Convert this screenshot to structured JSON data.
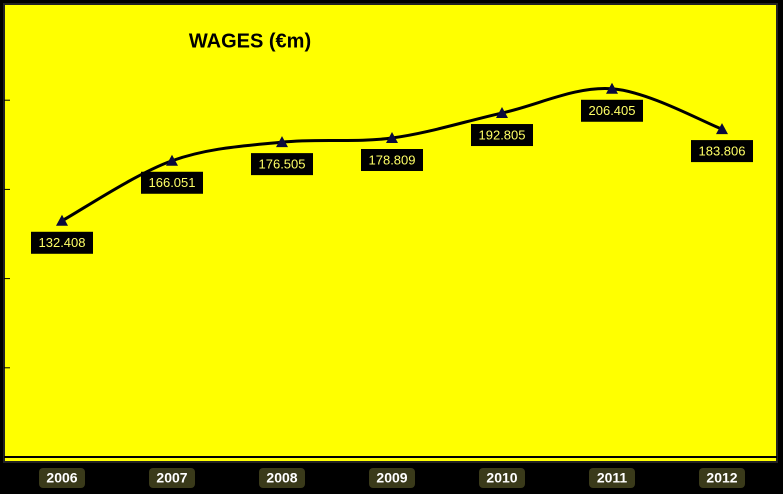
{
  "chart_data": {
    "type": "line",
    "title": "WAGES (€m)",
    "categories": [
      "2006",
      "2007",
      "2008",
      "2009",
      "2010",
      "2011",
      "2012"
    ],
    "series": [
      {
        "name": "WAGES",
        "color": "#000000",
        "values": [
          132.408,
          166.051,
          176.505,
          178.809,
          192.805,
          206.405,
          183.806
        ]
      }
    ],
    "ylim": [
      0,
      250
    ],
    "yticks": [
      0,
      50,
      100,
      150,
      200
    ],
    "grid": false
  }
}
